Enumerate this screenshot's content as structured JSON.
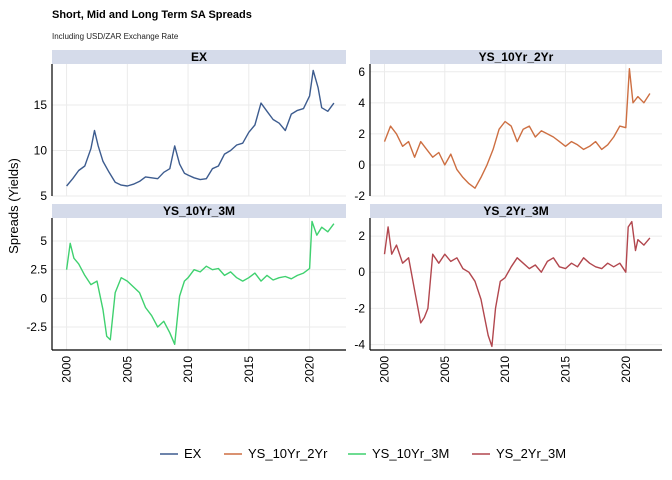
{
  "chart_data": {
    "type": "line",
    "title": "Short, Mid and Long Term SA Spreads",
    "subtitle": "Including USD/ZAR Exchange Rate",
    "ylabel": "Spreads (Yields)",
    "xlabel": "",
    "x_ticks": [
      2000,
      2005,
      2010,
      2015,
      2020
    ],
    "xlim": [
      1998.8,
      2023.0
    ],
    "legend": {
      "position": "bottom",
      "entries": [
        "EX",
        "YS_10Yr_2Yr",
        "YS_10Yr_3M",
        "YS_2Yr_3M"
      ]
    },
    "grid": true,
    "panels": [
      {
        "strip": "EX",
        "color": "#3d5c8f",
        "ylim": [
          5,
          19.5
        ],
        "y_ticks": [
          5,
          10,
          15
        ],
        "x": [
          2000,
          2000.5,
          2001,
          2001.5,
          2002,
          2002.3,
          2002.6,
          2003,
          2003.5,
          2004,
          2004.5,
          2005,
          2005.5,
          2006,
          2006.5,
          2007,
          2007.5,
          2008,
          2008.5,
          2008.9,
          2009.3,
          2009.7,
          2010,
          2010.5,
          2011,
          2011.5,
          2012,
          2012.5,
          2013,
          2013.5,
          2014,
          2014.5,
          2015,
          2015.5,
          2016,
          2016.5,
          2017,
          2017.5,
          2018,
          2018.5,
          2019,
          2019.5,
          2020,
          2020.3,
          2020.7,
          2021,
          2021.5,
          2022
        ],
        "y": [
          6.1,
          6.9,
          7.8,
          8.3,
          10.2,
          12.2,
          10.5,
          8.8,
          7.6,
          6.5,
          6.2,
          6.1,
          6.3,
          6.6,
          7.1,
          7.0,
          6.9,
          7.6,
          8.0,
          10.5,
          8.5,
          7.5,
          7.3,
          7.0,
          6.8,
          6.9,
          8.0,
          8.3,
          9.6,
          10.0,
          10.6,
          10.8,
          12.0,
          12.8,
          15.2,
          14.3,
          13.4,
          13.0,
          12.2,
          14.0,
          14.4,
          14.6,
          16.0,
          18.8,
          16.9,
          14.7,
          14.3,
          15.2
        ]
      },
      {
        "strip": "YS_10Yr_2Yr",
        "color": "#cd6f42",
        "ylim": [
          -2,
          6.5
        ],
        "y_ticks": [
          -2,
          0,
          2,
          4,
          6
        ],
        "x": [
          2000,
          2000.5,
          2001,
          2001.5,
          2002,
          2002.5,
          2003,
          2003.5,
          2004,
          2004.5,
          2005,
          2005.5,
          2006,
          2006.5,
          2007,
          2007.5,
          2008,
          2008.5,
          2009,
          2009.5,
          2010,
          2010.5,
          2011,
          2011.5,
          2012,
          2012.5,
          2013,
          2013.5,
          2014,
          2014.5,
          2015,
          2015.5,
          2016,
          2016.5,
          2017,
          2017.5,
          2018,
          2018.5,
          2019,
          2019.5,
          2020,
          2020.3,
          2020.6,
          2021,
          2021.5,
          2022
        ],
        "y": [
          1.5,
          2.5,
          2.0,
          1.2,
          1.5,
          0.5,
          1.5,
          1.0,
          0.5,
          0.8,
          0.0,
          0.7,
          -0.3,
          -0.8,
          -1.2,
          -1.5,
          -0.8,
          0.0,
          1.0,
          2.3,
          2.8,
          2.5,
          1.5,
          2.3,
          2.5,
          1.8,
          2.2,
          2.0,
          1.8,
          1.5,
          1.2,
          1.5,
          1.3,
          1.0,
          1.2,
          1.5,
          1.0,
          1.3,
          1.8,
          2.5,
          2.4,
          6.2,
          4.0,
          4.4,
          4.0,
          4.6
        ]
      },
      {
        "strip": "YS_10Yr_3M",
        "color": "#3fd16f",
        "ylim": [
          -4.5,
          7
        ],
        "y_ticks": [
          -2.5,
          0,
          2.5,
          5
        ],
        "x": [
          2000,
          2000.3,
          2000.6,
          2001,
          2001.5,
          2002,
          2002.5,
          2003,
          2003.3,
          2003.6,
          2004,
          2004.5,
          2005,
          2005.5,
          2006,
          2006.5,
          2007,
          2007.5,
          2008,
          2008.5,
          2008.9,
          2009.3,
          2009.7,
          2010,
          2010.5,
          2011,
          2011.5,
          2012,
          2012.5,
          2013,
          2013.5,
          2014,
          2014.5,
          2015,
          2015.5,
          2016,
          2016.5,
          2017,
          2017.5,
          2018,
          2018.5,
          2019,
          2019.5,
          2020,
          2020.2,
          2020.6,
          2021,
          2021.5,
          2022
        ],
        "y": [
          2.5,
          4.8,
          3.5,
          3.0,
          2.0,
          1.2,
          1.5,
          -1.0,
          -3.3,
          -3.6,
          0.5,
          1.8,
          1.5,
          1.0,
          0.5,
          -0.8,
          -1.5,
          -2.5,
          -2.0,
          -3.0,
          -4.0,
          0.2,
          1.5,
          1.8,
          2.5,
          2.3,
          2.8,
          2.5,
          2.6,
          2.0,
          2.3,
          1.8,
          1.5,
          1.8,
          2.2,
          1.5,
          2.0,
          1.6,
          1.8,
          1.9,
          1.7,
          2.0,
          2.2,
          2.6,
          6.7,
          5.5,
          6.2,
          5.8,
          6.5
        ]
      },
      {
        "strip": "YS_2Yr_3M",
        "color": "#b2474e",
        "ylim": [
          -4.3,
          3.0
        ],
        "y_ticks": [
          -4,
          -2,
          0,
          2
        ],
        "x": [
          2000,
          2000.3,
          2000.6,
          2001,
          2001.5,
          2002,
          2002.5,
          2003,
          2003.3,
          2003.6,
          2004,
          2004.5,
          2005,
          2005.5,
          2006,
          2006.5,
          2007,
          2007.5,
          2008,
          2008.3,
          2008.6,
          2008.9,
          2009.2,
          2009.6,
          2010,
          2010.5,
          2011,
          2011.5,
          2012,
          2012.5,
          2013,
          2013.5,
          2014,
          2014.5,
          2015,
          2015.5,
          2016,
          2016.5,
          2017,
          2017.5,
          2018,
          2018.5,
          2019,
          2019.5,
          2020,
          2020.2,
          2020.5,
          2020.8,
          2021,
          2021.5,
          2022
        ],
        "y": [
          1.0,
          2.5,
          1.0,
          1.5,
          0.5,
          0.8,
          -1.0,
          -2.8,
          -2.5,
          -2.0,
          1.0,
          0.5,
          1.0,
          0.6,
          0.8,
          0.2,
          0.0,
          -0.5,
          -1.5,
          -2.5,
          -3.5,
          -4.1,
          -2.0,
          -0.5,
          -0.3,
          0.3,
          0.8,
          0.5,
          0.2,
          0.4,
          0.0,
          0.6,
          0.8,
          0.3,
          0.2,
          0.5,
          0.3,
          0.8,
          0.5,
          0.3,
          0.2,
          0.5,
          0.3,
          0.5,
          0.0,
          2.5,
          2.8,
          1.2,
          1.8,
          1.5,
          1.9
        ]
      }
    ]
  }
}
